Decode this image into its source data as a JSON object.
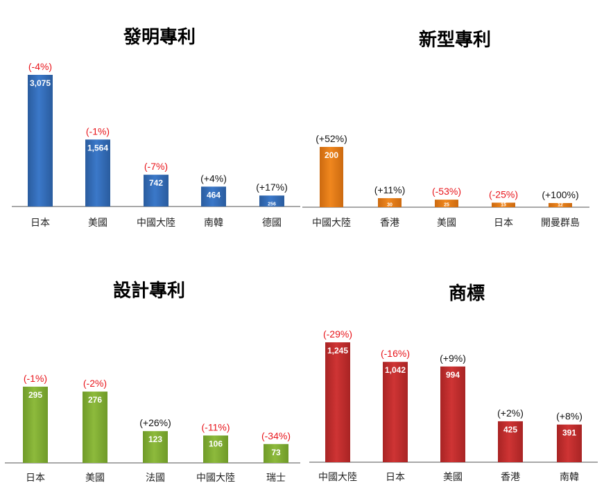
{
  "colors": {
    "negative": "#e8141a",
    "positive": "#111111",
    "axis": "#8c8c8c"
  },
  "chart_data": [
    {
      "type": "bar",
      "title": "發明專利",
      "color": "#3b78c9",
      "color_dark": "#2a5c9e",
      "categories": [
        "日本",
        "美國",
        "中國大陸",
        "南韓",
        "德國"
      ],
      "values": [
        3075,
        1564,
        742,
        464,
        256
      ],
      "value_labels": [
        "3,075",
        "1,564",
        "742",
        "464",
        "256"
      ],
      "changes": [
        "(-4%)",
        "(-1%)",
        "(-7%)",
        "(+4%)",
        "(+17%)"
      ],
      "change_sign": [
        "neg",
        "neg",
        "neg",
        "pos",
        "pos"
      ]
    },
    {
      "type": "bar",
      "title": "新型專利",
      "color": "#f0871e",
      "color_dark": "#cc6a10",
      "categories": [
        "中國大陸",
        "香港",
        "美國",
        "日本",
        "開曼群島"
      ],
      "values": [
        200,
        30,
        25,
        15,
        12
      ],
      "value_labels": [
        "200",
        "30",
        "25",
        "15",
        "12"
      ],
      "changes": [
        "(+52%)",
        "(+11%)",
        "(-53%)",
        "(-25%)",
        "(+100%)"
      ],
      "change_sign": [
        "pos",
        "pos",
        "neg",
        "neg",
        "pos"
      ]
    },
    {
      "type": "bar",
      "title": "設計專利",
      "color": "#8dba3c",
      "color_dark": "#6f9a28",
      "categories": [
        "日本",
        "美國",
        "法國",
        "中國大陸",
        "瑞士"
      ],
      "values": [
        295,
        276,
        123,
        106,
        73
      ],
      "value_labels": [
        "295",
        "276",
        "123",
        "106",
        "73"
      ],
      "changes": [
        "(-1%)",
        "(-2%)",
        "(+26%)",
        "(-11%)",
        "(-34%)"
      ],
      "change_sign": [
        "neg",
        "neg",
        "pos",
        "neg",
        "neg"
      ]
    },
    {
      "type": "bar",
      "title": "商標",
      "color": "#cf3434",
      "color_dark": "#a82424",
      "categories": [
        "中國大陸",
        "日本",
        "美國",
        "香港",
        "南韓"
      ],
      "values": [
        1245,
        1042,
        994,
        425,
        391
      ],
      "value_labels": [
        "1,245",
        "1,042",
        "994",
        "425",
        "391"
      ],
      "changes": [
        "(-29%)",
        "(-16%)",
        "(+9%)",
        "(+2%)",
        "(+8%)"
      ],
      "change_sign": [
        "neg",
        "neg",
        "pos",
        "pos",
        "pos"
      ]
    }
  ]
}
